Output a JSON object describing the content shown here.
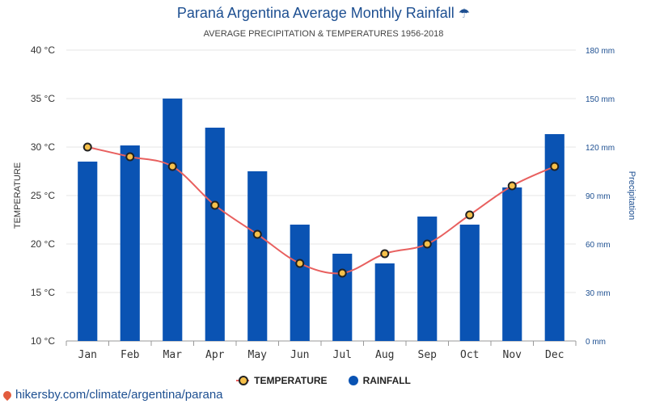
{
  "title": "Paraná Argentina Average Monthly Rainfall",
  "title_icon": "umbrella-icon",
  "subtitle": "AVERAGE PRECIPITATION & TEMPERATURES 1956-2018",
  "source": "hikersby.com/climate/argentina/parana",
  "legend": {
    "temperature": "TEMPERATURE",
    "rainfall": "RAINFALL"
  },
  "colors": {
    "rainfall": "#0a53b3",
    "temperature_line": "#e8605f",
    "temperature_marker": "#f6c04a",
    "title": "#1d4f91"
  },
  "chart_data": {
    "type": "bar",
    "categories": [
      "Jan",
      "Feb",
      "Mar",
      "Apr",
      "May",
      "Jun",
      "Jul",
      "Aug",
      "Sep",
      "Oct",
      "Nov",
      "Dec"
    ],
    "series": [
      {
        "name": "RAINFALL",
        "type": "bar",
        "axis": "right",
        "unit": "mm",
        "values": [
          111,
          121,
          150,
          132,
          105,
          72,
          54,
          48,
          77,
          72,
          95,
          128
        ]
      },
      {
        "name": "TEMPERATURE",
        "type": "line",
        "axis": "left",
        "unit": "°C",
        "values": [
          30,
          29,
          28,
          24,
          21,
          18,
          17,
          19,
          20,
          23,
          26,
          28
        ]
      }
    ],
    "ylabel": "TEMPERATURE",
    "ylabel_right": "Precipitation",
    "ylim": [
      10,
      40
    ],
    "ylim_right": [
      0,
      180
    ],
    "yticks": [
      "10 °C",
      "15 °C",
      "20 °C",
      "25 °C",
      "30 °C",
      "35 °C",
      "40 °C"
    ],
    "yticks_right": [
      "0 mm",
      "30 mm",
      "60 mm",
      "90 mm",
      "120 mm",
      "150 mm",
      "180 mm"
    ],
    "grid": true,
    "legend_position": "bottom-center"
  }
}
